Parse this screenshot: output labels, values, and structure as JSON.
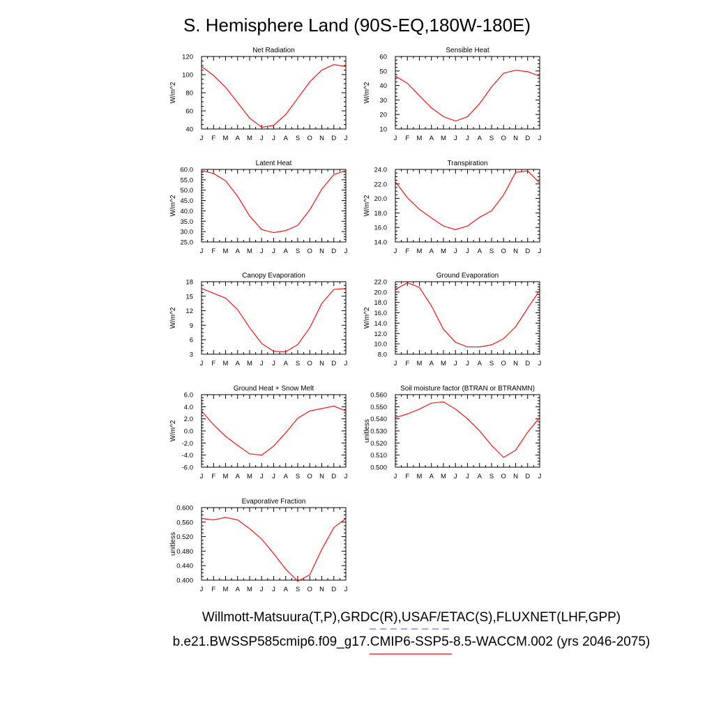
{
  "figure": {
    "title": "S. Hemisphere Land (90S-EQ,180W-180E)",
    "legend_line1": "Willmott-Matsuura(T,P),GRDC(R),USAF/ETAC(S),FLUXNET(LHF,GPP)",
    "legend_line2": "b.e21.BWSSP585cmip6.f09_g17.CMIP6-SSP5-8.5-WACCM.002 (yrs 2046-2075)",
    "obs_line_color": "#6f6fff",
    "model_line_color": "#ff0000"
  },
  "chart_data": [
    {
      "type": "line",
      "title": "Net Radiation",
      "ylabel": "W/m^2",
      "xlabel": "",
      "x_ticks": [
        "J",
        "F",
        "M",
        "A",
        "M",
        "J",
        "J",
        "A",
        "S",
        "O",
        "N",
        "D",
        "J"
      ],
      "y_ticks": [
        "40",
        "60",
        "80",
        "100",
        "120"
      ],
      "ylim": [
        40,
        120
      ],
      "grid": false,
      "color": "#ff0000",
      "values": [
        109,
        99,
        86,
        69,
        52,
        42,
        44,
        56,
        74,
        92,
        105,
        111,
        109
      ]
    },
    {
      "type": "line",
      "title": "Sensible Heat",
      "ylabel": "W/m^2",
      "xlabel": "",
      "x_ticks": [
        "J",
        "F",
        "M",
        "A",
        "M",
        "J",
        "J",
        "A",
        "S",
        "O",
        "N",
        "D",
        "J"
      ],
      "y_ticks": [
        "10",
        "20",
        "30",
        "40",
        "50",
        "60"
      ],
      "ylim": [
        10,
        60
      ],
      "grid": false,
      "color": "#ff0000",
      "values": [
        46.5,
        41.5,
        33,
        24.5,
        18.5,
        15.5,
        18.5,
        27.5,
        39,
        48.5,
        50.5,
        49.5,
        46.5
      ]
    },
    {
      "type": "line",
      "title": "Latent Heat",
      "ylabel": "W/m^2",
      "xlabel": "",
      "x_ticks": [
        "J",
        "F",
        "M",
        "A",
        "M",
        "J",
        "J",
        "A",
        "S",
        "O",
        "N",
        "D",
        "J"
      ],
      "y_ticks": [
        "25.0",
        "30.0",
        "35.0",
        "40.0",
        "45.0",
        "50.0",
        "55.0",
        "60.0"
      ],
      "ylim": [
        25,
        60
      ],
      "grid": false,
      "color": "#ff0000",
      "values": [
        59.5,
        58,
        54.5,
        47,
        37.5,
        31,
        29.5,
        30.5,
        33,
        40.5,
        50.5,
        57.5,
        59.5
      ]
    },
    {
      "type": "line",
      "title": "Transpiration",
      "ylabel": "W/m^2",
      "xlabel": "",
      "x_ticks": [
        "J",
        "F",
        "M",
        "A",
        "M",
        "J",
        "J",
        "A",
        "S",
        "O",
        "N",
        "D",
        "J"
      ],
      "y_ticks": [
        "14.0",
        "16.0",
        "18.0",
        "20.0",
        "22.0",
        "24.0"
      ],
      "ylim": [
        14,
        24
      ],
      "grid": false,
      "color": "#ff0000",
      "values": [
        22.3,
        20.1,
        18.5,
        17.3,
        16.2,
        15.7,
        16.2,
        17.4,
        18.3,
        20.5,
        23.6,
        23.8,
        22.1
      ]
    },
    {
      "type": "line",
      "title": "Canopy Evaporation",
      "ylabel": "W/m^2",
      "xlabel": "",
      "x_ticks": [
        "J",
        "F",
        "M",
        "A",
        "M",
        "J",
        "J",
        "A",
        "S",
        "O",
        "N",
        "D",
        "J"
      ],
      "y_ticks": [
        "3",
        "6",
        "9",
        "12",
        "15",
        "18"
      ],
      "ylim": [
        3,
        18
      ],
      "grid": false,
      "color": "#ff0000",
      "values": [
        16.6,
        15.6,
        14.6,
        12.2,
        8.5,
        5.2,
        3.6,
        3.5,
        5,
        8.5,
        13.5,
        16.4,
        16.6
      ]
    },
    {
      "type": "line",
      "title": "Ground Evaporation",
      "ylabel": "W/m^2",
      "xlabel": "",
      "x_ticks": [
        "J",
        "F",
        "M",
        "A",
        "M",
        "J",
        "J",
        "A",
        "S",
        "O",
        "N",
        "D",
        "J"
      ],
      "y_ticks": [
        "8.0",
        "10.0",
        "12.0",
        "14.0",
        "16.0",
        "18.0",
        "20.0",
        "22.0"
      ],
      "ylim": [
        8,
        22
      ],
      "grid": false,
      "color": "#ff0000",
      "values": [
        20.5,
        21.8,
        20.9,
        17.3,
        12.8,
        10.3,
        9.4,
        9.4,
        9.8,
        11,
        13.3,
        16.9,
        20.3
      ]
    },
    {
      "type": "line",
      "title": "Ground Heat + Snow Melt",
      "ylabel": "W/m^2",
      "xlabel": "",
      "x_ticks": [
        "J",
        "F",
        "M",
        "A",
        "M",
        "J",
        "J",
        "A",
        "S",
        "O",
        "N",
        "D",
        "J"
      ],
      "y_ticks": [
        "-6.0",
        "-4.0",
        "-2.0",
        "0.0",
        "2.0",
        "4.0",
        "6.0"
      ],
      "ylim": [
        -6,
        6
      ],
      "grid": false,
      "color": "#ff0000",
      "values": [
        3.3,
        1,
        -0.9,
        -2.4,
        -3.8,
        -4,
        -2.5,
        -0.3,
        2.1,
        3.3,
        3.7,
        4.1,
        3.3
      ]
    },
    {
      "type": "line",
      "title": "Soil moisture factor (BTRAN or BTRANMN)",
      "ylabel": "unitless",
      "xlabel": "",
      "x_ticks": [
        "J",
        "F",
        "M",
        "A",
        "M",
        "J",
        "J",
        "A",
        "S",
        "O",
        "N",
        "D",
        "J"
      ],
      "y_ticks": [
        "0.500",
        "0.510",
        "0.520",
        "0.530",
        "0.540",
        "0.550",
        "0.560"
      ],
      "ylim": [
        0.5,
        0.56
      ],
      "grid": false,
      "color": "#ff0000",
      "values": [
        0.541,
        0.544,
        0.548,
        0.553,
        0.554,
        0.548,
        0.54,
        0.53,
        0.518,
        0.508,
        0.514,
        0.529,
        0.541
      ]
    },
    {
      "type": "line",
      "title": "Evaporative Fraction",
      "ylabel": "unitless",
      "xlabel": "",
      "x_ticks": [
        "J",
        "F",
        "M",
        "A",
        "M",
        "J",
        "J",
        "A",
        "S",
        "O",
        "N",
        "D",
        "J"
      ],
      "y_ticks": [
        "0.400",
        "0.440",
        "0.480",
        "0.520",
        "0.560",
        "0.600"
      ],
      "ylim": [
        0.4,
        0.6
      ],
      "grid": false,
      "color": "#ff0000",
      "values": [
        0.57,
        0.566,
        0.573,
        0.566,
        0.542,
        0.513,
        0.473,
        0.43,
        0.397,
        0.415,
        0.485,
        0.545,
        0.57
      ]
    }
  ]
}
